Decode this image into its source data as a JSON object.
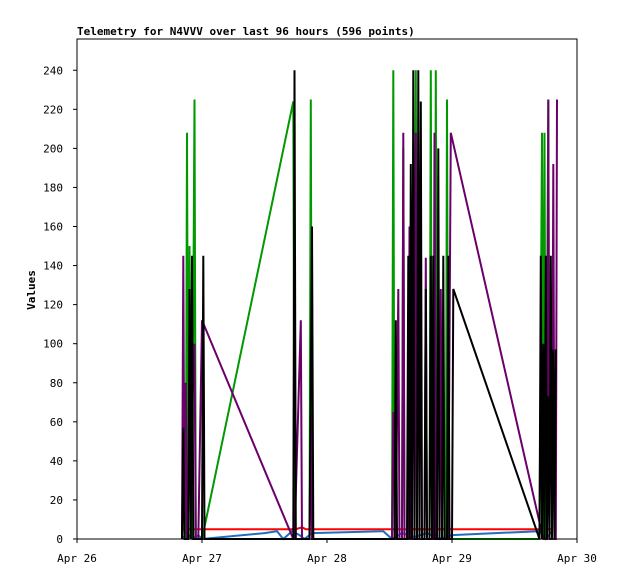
{
  "chart_data": {
    "type": "line",
    "title": "Telemetry for N4VVV over last 96 hours (596 points)",
    "xlabel": "",
    "ylabel": "Values",
    "x_ticks": [
      "Apr 26",
      "Apr 27",
      "Apr 28",
      "Apr 29",
      "Apr 30"
    ],
    "xlim": [
      "Apr 26",
      "Apr 30"
    ],
    "ylim": [
      0,
      256
    ],
    "y_ticks": [
      0,
      20,
      40,
      60,
      80,
      100,
      120,
      140,
      160,
      180,
      200,
      220,
      240
    ],
    "grid": false,
    "legend": "none",
    "colors": {
      "axis": "#000000",
      "red": "#ff0000",
      "green": "#009900",
      "purple": "#6b006b",
      "black": "#000000",
      "blue": "#1e6fc0"
    },
    "series": [
      {
        "color": "#ff0000",
        "points": [
          [
            0.84,
            5
          ],
          [
            1.75,
            5
          ],
          [
            1.8,
            6
          ],
          [
            1.83,
            5
          ],
          [
            2.5,
            5
          ],
          [
            3.0,
            5
          ],
          [
            3.8,
            5
          ]
        ]
      },
      {
        "color": "#1e6fc0",
        "points": [
          [
            0.84,
            0
          ],
          [
            0.88,
            3
          ],
          [
            0.92,
            0
          ],
          [
            0.97,
            2
          ],
          [
            1.0,
            0
          ],
          [
            1.5,
            3
          ],
          [
            1.6,
            4
          ],
          [
            1.65,
            0
          ],
          [
            1.72,
            4
          ],
          [
            1.78,
            2
          ],
          [
            1.82,
            0
          ],
          [
            1.88,
            3
          ],
          [
            2.45,
            4
          ],
          [
            2.52,
            0
          ],
          [
            2.6,
            3
          ],
          [
            2.7,
            1
          ],
          [
            2.8,
            3
          ],
          [
            2.9,
            0
          ],
          [
            3.0,
            2
          ],
          [
            3.7,
            4
          ],
          [
            3.75,
            0
          ],
          [
            3.8,
            4
          ]
        ]
      },
      {
        "color": "#009900",
        "points": [
          [
            0.84,
            0
          ],
          [
            0.86,
            50
          ],
          [
            0.87,
            0
          ],
          [
            0.88,
            208
          ],
          [
            0.89,
            0
          ],
          [
            0.9,
            150
          ],
          [
            0.92,
            0
          ],
          [
            0.94,
            225
          ],
          [
            0.95,
            0
          ],
          [
            1.0,
            0
          ],
          [
            1.73,
            224
          ],
          [
            1.74,
            0
          ],
          [
            1.86,
            0
          ],
          [
            1.87,
            225
          ],
          [
            1.88,
            0
          ],
          [
            2.52,
            0
          ],
          [
            2.53,
            240
          ],
          [
            2.54,
            0
          ],
          [
            2.6,
            0
          ],
          [
            2.61,
            200
          ],
          [
            2.62,
            0
          ],
          [
            2.7,
            0
          ],
          [
            2.71,
            240
          ],
          [
            2.72,
            0
          ],
          [
            2.82,
            0
          ],
          [
            2.83,
            240
          ],
          [
            2.84,
            0
          ],
          [
            2.86,
            0
          ],
          [
            2.87,
            240
          ],
          [
            2.88,
            0
          ],
          [
            2.95,
            0
          ],
          [
            2.96,
            225
          ],
          [
            2.97,
            0
          ],
          [
            3.0,
            0
          ],
          [
            3.7,
            0
          ],
          [
            3.72,
            208
          ],
          [
            3.73,
            0
          ],
          [
            3.74,
            208
          ],
          [
            3.75,
            0
          ],
          [
            3.77,
            225
          ],
          [
            3.78,
            0
          ],
          [
            3.82,
            0
          ]
        ]
      },
      {
        "color": "#6b006b",
        "points": [
          [
            0.84,
            0
          ],
          [
            0.85,
            145
          ],
          [
            0.86,
            0
          ],
          [
            0.87,
            80
          ],
          [
            0.88,
            0
          ],
          [
            0.94,
            100
          ],
          [
            0.95,
            0
          ],
          [
            0.97,
            0
          ],
          [
            1.0,
            112
          ],
          [
            1.73,
            0
          ],
          [
            1.74,
            0
          ],
          [
            1.79,
            112
          ],
          [
            1.8,
            0
          ],
          [
            1.86,
            0
          ],
          [
            1.87,
            65
          ],
          [
            1.88,
            0
          ],
          [
            2.52,
            0
          ],
          [
            2.53,
            65
          ],
          [
            2.55,
            0
          ],
          [
            2.57,
            128
          ],
          [
            2.58,
            0
          ],
          [
            2.6,
            0
          ],
          [
            2.61,
            208
          ],
          [
            2.62,
            0
          ],
          [
            2.65,
            0
          ],
          [
            2.66,
            160
          ],
          [
            2.67,
            0
          ],
          [
            2.7,
            0
          ],
          [
            2.71,
            208
          ],
          [
            2.72,
            0
          ],
          [
            2.78,
            0
          ],
          [
            2.79,
            144
          ],
          [
            2.8,
            0
          ],
          [
            2.85,
            0
          ],
          [
            2.86,
            208
          ],
          [
            2.87,
            0
          ],
          [
            2.9,
            0
          ],
          [
            2.91,
            128
          ],
          [
            2.92,
            0
          ],
          [
            2.97,
            0
          ],
          [
            2.99,
            208
          ],
          [
            3.73,
            0
          ],
          [
            3.76,
            0
          ],
          [
            3.77,
            225
          ],
          [
            3.78,
            0
          ],
          [
            3.8,
            0
          ],
          [
            3.81,
            192
          ],
          [
            3.82,
            0
          ],
          [
            3.83,
            0
          ],
          [
            3.84,
            225
          ]
        ]
      },
      {
        "color": "#000000",
        "points": [
          [
            0.84,
            0
          ],
          [
            0.85,
            57
          ],
          [
            0.86,
            0
          ],
          [
            0.89,
            0
          ],
          [
            0.9,
            128
          ],
          [
            0.91,
            0
          ],
          [
            0.92,
            145
          ],
          [
            0.93,
            0
          ],
          [
            1.0,
            0
          ],
          [
            1.01,
            145
          ],
          [
            1.02,
            0
          ],
          [
            1.73,
            0
          ],
          [
            1.74,
            240
          ],
          [
            1.75,
            0
          ],
          [
            1.86,
            0
          ],
          [
            1.87,
            80
          ],
          [
            1.88,
            160
          ],
          [
            1.89,
            0
          ],
          [
            2.54,
            0
          ],
          [
            2.55,
            112
          ],
          [
            2.56,
            0
          ],
          [
            2.64,
            0
          ],
          [
            2.65,
            145
          ],
          [
            2.66,
            0
          ],
          [
            2.67,
            192
          ],
          [
            2.68,
            0
          ],
          [
            2.69,
            240
          ],
          [
            2.7,
            0
          ],
          [
            2.72,
            0
          ],
          [
            2.73,
            240
          ],
          [
            2.74,
            0
          ],
          [
            2.75,
            224
          ],
          [
            2.76,
            0
          ],
          [
            2.78,
            0
          ],
          [
            2.79,
            128
          ],
          [
            2.8,
            0
          ],
          [
            2.82,
            0
          ],
          [
            2.83,
            145
          ],
          [
            2.84,
            0
          ],
          [
            2.85,
            145
          ],
          [
            2.86,
            0
          ],
          [
            2.88,
            0
          ],
          [
            2.89,
            200
          ],
          [
            2.9,
            0
          ],
          [
            2.92,
            0
          ],
          [
            2.93,
            145
          ],
          [
            2.94,
            0
          ],
          [
            2.96,
            0
          ],
          [
            2.97,
            145
          ],
          [
            2.98,
            0
          ],
          [
            3.0,
            0
          ],
          [
            3.01,
            128
          ],
          [
            3.7,
            0
          ],
          [
            3.71,
            145
          ],
          [
            3.72,
            0
          ],
          [
            3.73,
            100
          ],
          [
            3.74,
            0
          ],
          [
            3.75,
            145
          ],
          [
            3.76,
            0
          ],
          [
            3.77,
            73
          ],
          [
            3.78,
            0
          ],
          [
            3.79,
            145
          ],
          [
            3.8,
            0
          ],
          [
            3.81,
            97
          ],
          [
            3.82,
            0
          ],
          [
            3.83,
            97
          ]
        ]
      }
    ]
  }
}
